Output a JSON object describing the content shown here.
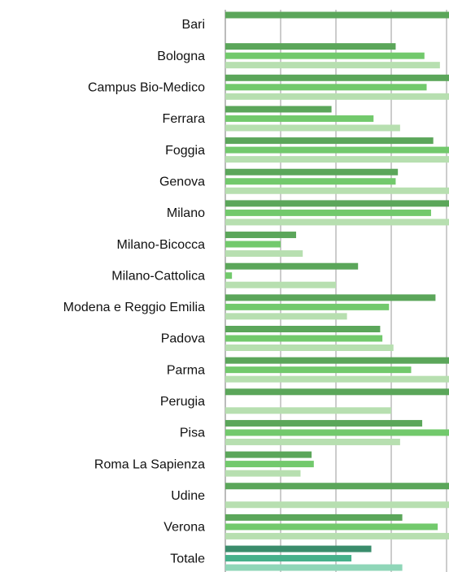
{
  "chart_data": {
    "type": "hbar",
    "categories": [
      "Bari",
      "Bologna",
      "Campus Bio-Medico",
      "Ferrara",
      "Foggia",
      "Genova",
      "Milano",
      "Milano-Bicocca",
      "Milano-Cattolica",
      "Modena e Reggio Emilia",
      "Padova",
      "Parma",
      "Perugia",
      "Pisa",
      "Roma La Sapienza",
      "Udine",
      "Verona",
      "Totale"
    ],
    "series": [
      {
        "color": "#5ba65a",
        "highlight_color": "#3a8c6c",
        "values": [
          100,
          77,
          100,
          48,
          94,
          78,
          100,
          32,
          60,
          95,
          70,
          100,
          100,
          89,
          39,
          100,
          80,
          66
        ]
      },
      {
        "color": "#72c96c",
        "highlight_color": "#46b08b",
        "values": [
          null,
          90,
          91,
          67,
          100,
          77,
          93,
          25,
          3,
          74,
          71,
          84,
          null,
          100,
          40,
          null,
          96,
          57
        ]
      },
      {
        "color": "#b7dfb0",
        "highlight_color": "#8fd6b8",
        "values": [
          null,
          97,
          100,
          79,
          100,
          100,
          100,
          35,
          50,
          55,
          76,
          100,
          75,
          79,
          34,
          100,
          100,
          80
        ]
      }
    ],
    "xlim": [
      0,
      100
    ],
    "xticks": [
      0,
      25,
      50,
      75,
      100
    ],
    "grid": true
  }
}
